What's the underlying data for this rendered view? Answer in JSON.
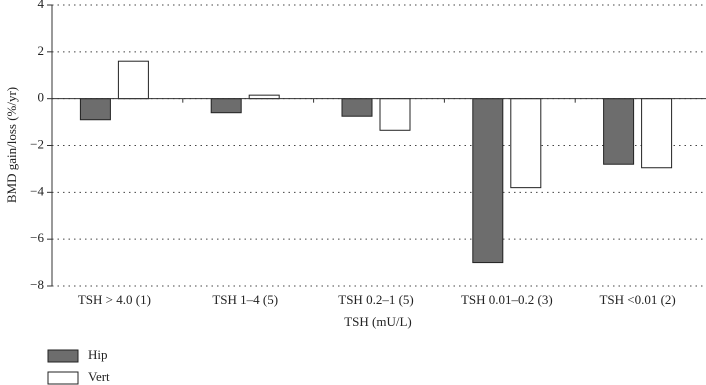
{
  "chart_data": {
    "type": "bar",
    "categories": [
      "TSH > 4.0 (1)",
      "TSH 1–4 (5)",
      "TSH 0.2–1 (5)",
      "TSH 0.01–0.2 (3)",
      "TSH <0.01 (2)"
    ],
    "series": [
      {
        "name": "Hip",
        "color": "#6d6d6d",
        "values": [
          -0.9,
          -0.6,
          -0.75,
          -7.0,
          -2.8
        ]
      },
      {
        "name": "Vert",
        "color": "#ffffff",
        "values": [
          1.6,
          0.15,
          -1.35,
          -3.8,
          -2.95
        ]
      }
    ],
    "xlabel": "TSH (mU/L)",
    "ylabel": "BMD gain/loss (%/yr)",
    "ylim": [
      -8,
      4
    ],
    "yticks": [
      {
        "value": -8,
        "label": "−8"
      },
      {
        "value": -6,
        "label": "−6"
      },
      {
        "value": -4,
        "label": "−4"
      },
      {
        "value": -2,
        "label": "−2"
      },
      0,
      2,
      4
    ],
    "grid": true,
    "legend": "bottom-left"
  }
}
